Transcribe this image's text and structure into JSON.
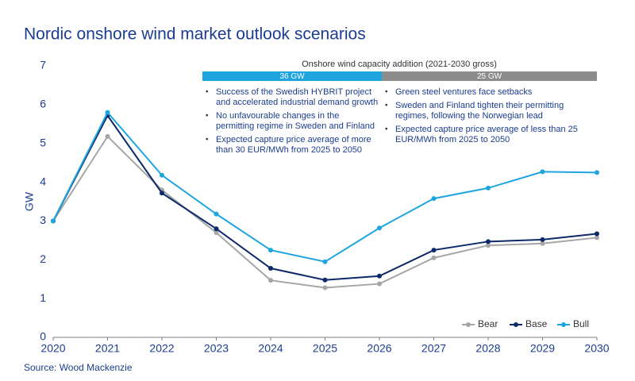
{
  "chart_data": {
    "type": "line",
    "title": "Nordic onshore wind market outlook scenarios",
    "y_label": "GW",
    "source": "Source: Wood Mackenzie",
    "x": [
      2020,
      2021,
      2022,
      2023,
      2024,
      2025,
      2026,
      2027,
      2028,
      2029,
      2030
    ],
    "xlim": [
      2020,
      2030
    ],
    "xticks": [
      2020,
      2021,
      2022,
      2023,
      2024,
      2025,
      2026,
      2027,
      2028,
      2029,
      2030
    ],
    "ylim": [
      0,
      7
    ],
    "yticks": [
      0,
      1,
      2,
      3,
      4,
      5,
      6,
      7
    ],
    "grid": false,
    "legend": "lower right",
    "series": [
      {
        "name": "Bear",
        "color": "#a6a6a6",
        "values": [
          3.0,
          5.18,
          3.8,
          2.7,
          1.47,
          1.28,
          1.38,
          2.05,
          2.37,
          2.42,
          2.57
        ]
      },
      {
        "name": "Base",
        "color": "#0c2a6a",
        "values": [
          3.0,
          5.72,
          3.72,
          2.8,
          1.78,
          1.48,
          1.58,
          2.25,
          2.47,
          2.52,
          2.67
        ]
      },
      {
        "name": "Bull",
        "color": "#1ea5e0",
        "values": [
          3.0,
          5.8,
          4.18,
          3.18,
          2.25,
          1.95,
          2.82,
          3.58,
          3.85,
          4.27,
          4.25
        ]
      }
    ],
    "panel_title": "Onshore wind capacity addition (2021-2030 gross)",
    "panels": [
      {
        "header": "36 GW",
        "color": "#1ea5e0",
        "bullets": [
          [
            "Success of the Swedish HYBRIT project",
            "and accelerated industrial demand growth"
          ],
          [
            "No unfavourable changes in the",
            "permitting regime in Sweden and Finland"
          ],
          [
            "Expected capture price average of more",
            "than 30 EUR/MWh from 2025 to 2050"
          ]
        ]
      },
      {
        "header": "25 GW",
        "color": "#8c8c8c",
        "bullets": [
          [
            "Green steel ventures face setbacks"
          ],
          [
            "Sweden and Finland tighten their permitting",
            "regimes, following the Norwegian lead"
          ],
          [
            "Expected capture price average of less than 25",
            "EUR/MWh from 2025 to 2050"
          ]
        ]
      }
    ]
  }
}
